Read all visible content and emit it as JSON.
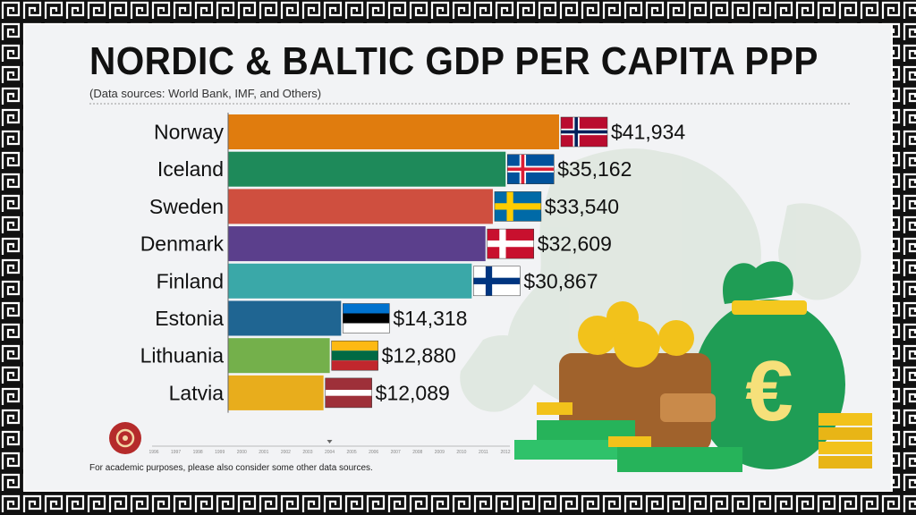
{
  "title": "NORDIC & BALTIC GDP PER CAPITA PPP",
  "subtitle": "(Data sources: World Bank, IMF, and Others)",
  "footer": "For academic purposes, please also consider some other data sources.",
  "chart_data": {
    "type": "bar",
    "orientation": "horizontal",
    "categories": [
      "Norway",
      "Iceland",
      "Sweden",
      "Denmark",
      "Finland",
      "Estonia",
      "Lithuania",
      "Latvia"
    ],
    "values": [
      41934,
      35162,
      33540,
      32609,
      30867,
      14318,
      12880,
      12089
    ],
    "value_labels": [
      "$41,934",
      "$35,162",
      "$33,540",
      "$32,609",
      "$30,867",
      "$14,318",
      "$12,880",
      "$12,089"
    ],
    "colors": [
      "#e07c0e",
      "#1e8a5a",
      "#cf4f3f",
      "#5b3f8c",
      "#3aa8a8",
      "#1f6592",
      "#74b04b",
      "#e8ad1c"
    ],
    "flags": [
      "norway-flag",
      "iceland-flag",
      "sweden-flag",
      "denmark-flag",
      "finland-flag",
      "estonia-flag",
      "lithuania-flag",
      "latvia-flag"
    ],
    "timeline_ticks": [
      "1996",
      "1997",
      "1998",
      "1999",
      "2000",
      "2001",
      "2002",
      "2003",
      "2004",
      "2005",
      "2006",
      "2007",
      "2008",
      "2009",
      "2010",
      "2011",
      "2012"
    ],
    "timeline_current": "2004",
    "xlim": [
      0,
      41934
    ]
  }
}
